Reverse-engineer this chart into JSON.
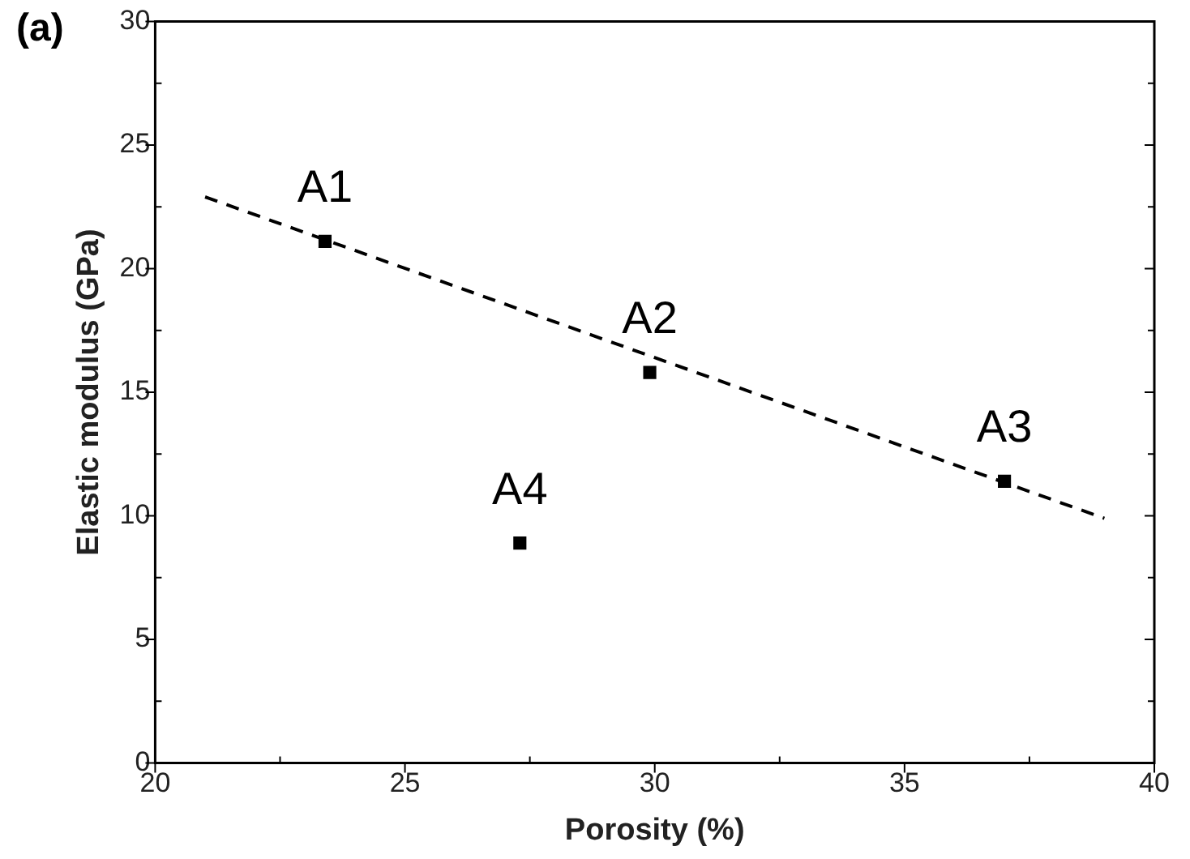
{
  "chart_data": {
    "type": "scatter",
    "title": "(a)",
    "xlabel": "Porosity (%)",
    "ylabel": "Elastic modulus (GPa)",
    "xlim": [
      20,
      40
    ],
    "xticks": [
      20,
      25,
      30,
      35,
      40
    ],
    "ylim": [
      0,
      30
    ],
    "yticks": [
      0,
      5,
      10,
      15,
      20,
      25,
      30
    ],
    "grid": false,
    "legend": false,
    "marker": "square",
    "series": [
      {
        "color": "#000000",
        "x": [
          23.4,
          29.9,
          37.0,
          27.3
        ],
        "values": [
          21.1,
          15.8,
          11.4,
          8.9
        ]
      },
      {
        "type": "line",
        "color": "#000000",
        "line_style": "dashed",
        "marker": "none",
        "x": [
          21.0,
          39.0
        ],
        "values": [
          22.9,
          9.9
        ]
      }
    ],
    "annotations": [
      {
        "text": "A1",
        "x": 23.4,
        "y": 21.1
      },
      {
        "text": "A2",
        "x": 29.9,
        "y": 15.8
      },
      {
        "text": "A3",
        "x": 37.0,
        "y": 11.4
      },
      {
        "text": "A4",
        "x": 27.3,
        "y": 8.9
      }
    ]
  }
}
